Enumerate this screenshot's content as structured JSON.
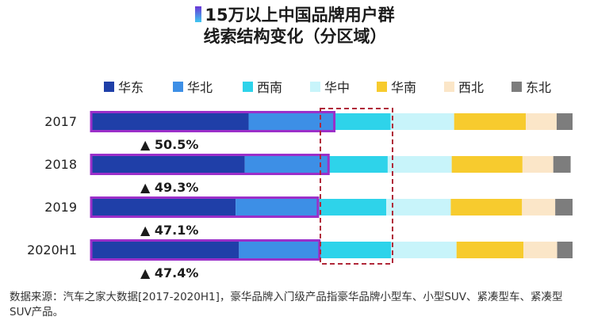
{
  "title": {
    "line1": "15万以上中国品牌用户群",
    "line2": "线索结构变化（分区域）"
  },
  "footnote": "数据来源：汽车之家大数据[2017-2020H1]，豪华品牌入门级产品指豪华品牌小型车、小型SUV、紧凑型车、紧凑型SUV产品。",
  "chart_data": {
    "type": "bar",
    "orientation": "horizontal",
    "stacked": true,
    "unit": "%",
    "categories": [
      "2017",
      "2018",
      "2019",
      "2020H1"
    ],
    "series": [
      {
        "name": "华东",
        "color": "#1f3fa8",
        "values": [
          32.7,
          31.9,
          30.0,
          30.7
        ]
      },
      {
        "name": "华北",
        "color": "#3d8fe6",
        "values": [
          17.8,
          17.4,
          17.1,
          16.7
        ]
      },
      {
        "name": "西南",
        "color": "#2ed3ea",
        "values": [
          11.7,
          12.3,
          14.2,
          14.9
        ]
      },
      {
        "name": "华中",
        "color": "#c8f4fa",
        "values": [
          13.2,
          13.3,
          13.4,
          13.6
        ]
      },
      {
        "name": "华南",
        "color": "#f7cb2e",
        "values": [
          14.9,
          14.7,
          14.8,
          13.9
        ]
      },
      {
        "name": "西北",
        "color": "#fbe6c8",
        "values": [
          6.4,
          6.4,
          6.9,
          7.0
        ]
      },
      {
        "name": "东北",
        "color": "#7d7d7d",
        "values": [
          3.3,
          3.6,
          3.6,
          3.2
        ]
      }
    ],
    "highlight": {
      "label_values": [
        "▲ 50.5%",
        "▲ 49.3%",
        "▲ 47.1%",
        "▲ 47.4%"
      ],
      "color": "#9b2fc9"
    },
    "legend_position": "top",
    "grid": false,
    "xlim": [
      0,
      100
    ]
  }
}
